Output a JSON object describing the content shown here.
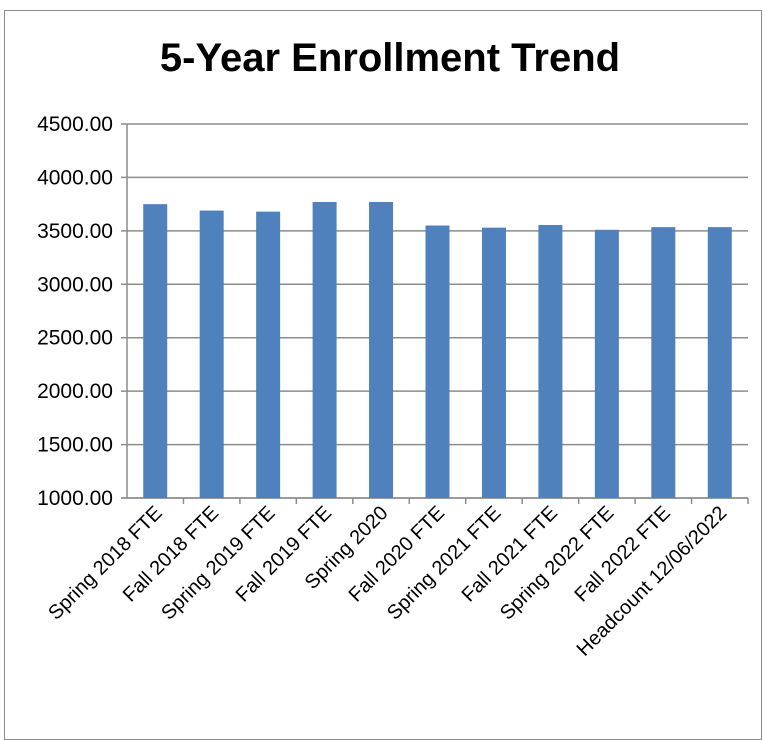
{
  "chart_data": {
    "type": "bar",
    "title": "5-Year Enrollment Trend",
    "categories": [
      "Spring 2018 FTE",
      "Fall 2018 FTE",
      "Spring 2019 FTE",
      "Fall 2019 FTE",
      "Spring 2020",
      "Fall 2020 FTE",
      "Spring 2021 FTE",
      "Fall 2021 FTE",
      "Spring 2022 FTE",
      "Fall 2022 FTE",
      "Headcount 12/06/2022"
    ],
    "values": [
      3750,
      3690,
      3680,
      3770,
      3770,
      3550,
      3530,
      3555,
      3510,
      3535,
      3535
    ],
    "ylim": [
      1000,
      4500
    ],
    "yticks": [
      "1000.00",
      "1500.00",
      "2000.00",
      "2500.00",
      "3000.00",
      "3500.00",
      "4000.00",
      "4500.00"
    ],
    "xlabel": "",
    "ylabel": "",
    "grid": true,
    "bar_color": "#4f81bd"
  }
}
